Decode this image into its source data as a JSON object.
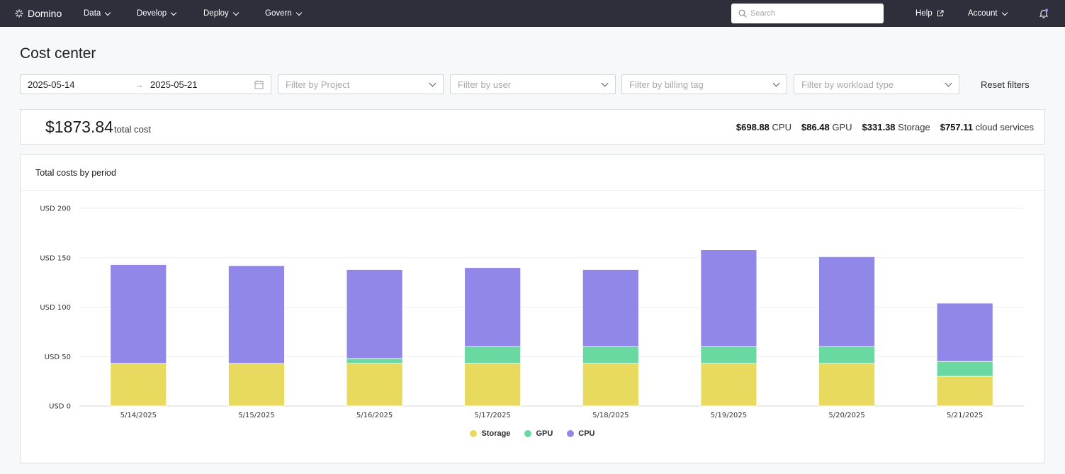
{
  "nav": {
    "brand": "Domino",
    "items": [
      {
        "label": "Data"
      },
      {
        "label": "Develop"
      },
      {
        "label": "Deploy"
      },
      {
        "label": "Govern"
      }
    ],
    "search_placeholder": "Search",
    "help": "Help",
    "account": "Account"
  },
  "page": {
    "title": "Cost center"
  },
  "filters": {
    "start_date": "2025-05-14",
    "end_date": "2025-05-21",
    "project_placeholder": "Filter by Project",
    "user_placeholder": "Filter by user",
    "billing_tag_placeholder": "Filter by billing tag",
    "workload_type_placeholder": "Filter by workload type",
    "reset_label": "Reset filters"
  },
  "summary": {
    "total_amount": "$1873.84",
    "total_label": "total cost",
    "breakdown": [
      {
        "amount": "$698.88",
        "label": "CPU"
      },
      {
        "amount": "$86.48",
        "label": "GPU"
      },
      {
        "amount": "$331.38",
        "label": "Storage"
      },
      {
        "amount": "$757.11",
        "label": "cloud services"
      }
    ]
  },
  "chart_data": {
    "type": "bar",
    "stacked": true,
    "title": "Total costs by period",
    "categories": [
      "5/14/2025",
      "5/15/2025",
      "5/16/2025",
      "5/17/2025",
      "5/18/2025",
      "5/19/2025",
      "5/20/2025",
      "5/21/2025"
    ],
    "series": [
      {
        "name": "Storage",
        "color": "#e8da5f",
        "values": [
          43,
          43,
          43,
          43,
          43,
          43,
          43,
          30
        ]
      },
      {
        "name": "GPU",
        "color": "#6ad9a1",
        "values": [
          0,
          0,
          5,
          17,
          17,
          17,
          17,
          15
        ]
      },
      {
        "name": "CPU",
        "color": "#9187e8",
        "values": [
          100,
          99,
          90,
          80,
          78,
          98,
          91,
          59
        ]
      }
    ],
    "yticks": [
      "USD 0",
      "USD 50",
      "USD 100",
      "USD 150",
      "USD 200"
    ],
    "ylim": [
      0,
      200
    ],
    "grid": true,
    "legend_position": "bottom-center"
  }
}
